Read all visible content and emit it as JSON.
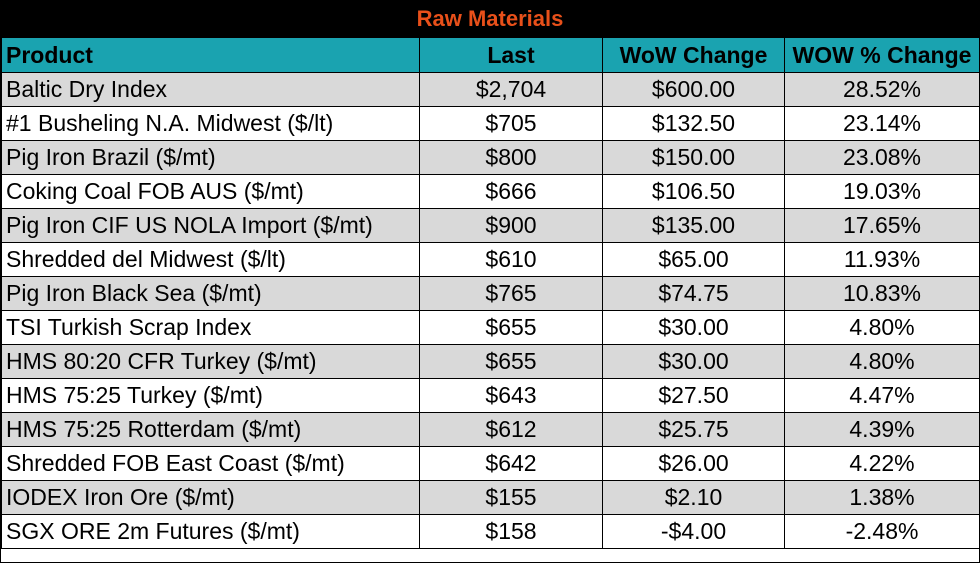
{
  "title": "Raw Materials",
  "colors": {
    "title_bg": "#000000",
    "title_text": "#e8501a",
    "header_bg": "#1aa3b0",
    "row_shaded": "#d9d9d9",
    "row_plain": "#ffffff"
  },
  "headers": {
    "product": "Product",
    "last": "Last",
    "wow_change": "WoW Change",
    "wow_pct_change": "WOW % Change"
  },
  "rows": [
    {
      "product": "Baltic Dry Index",
      "last": "$2,704",
      "wow": "$600.00",
      "pct": "28.52%"
    },
    {
      "product": "#1 Busheling N.A. Midwest ($/lt)",
      "last": "$705",
      "wow": "$132.50",
      "pct": "23.14%"
    },
    {
      "product": "Pig Iron Brazil ($/mt)",
      "last": "$800",
      "wow": "$150.00",
      "pct": "23.08%"
    },
    {
      "product": "Coking Coal FOB AUS ($/mt)",
      "last": "$666",
      "wow": "$106.50",
      "pct": "19.03%"
    },
    {
      "product": "Pig Iron CIF US NOLA Import ($/mt)",
      "last": "$900",
      "wow": "$135.00",
      "pct": "17.65%"
    },
    {
      "product": "Shredded del  Midwest ($/lt)",
      "last": "$610",
      "wow": "$65.00",
      "pct": "11.93%"
    },
    {
      "product": "Pig Iron Black Sea ($/mt)",
      "last": "$765",
      "wow": "$74.75",
      "pct": "10.83%"
    },
    {
      "product": "TSI Turkish Scrap Index",
      "last": "$655",
      "wow": "$30.00",
      "pct": "4.80%"
    },
    {
      "product": "HMS 80:20 CFR Turkey ($/mt)",
      "last": "$655",
      "wow": "$30.00",
      "pct": "4.80%"
    },
    {
      "product": "HMS 75:25 Turkey ($/mt)",
      "last": "$643",
      "wow": "$27.50",
      "pct": "4.47%"
    },
    {
      "product": "HMS 75:25 Rotterdam ($/mt)",
      "last": "$612",
      "wow": "$25.75",
      "pct": "4.39%"
    },
    {
      "product": "Shredded FOB East Coast ($/mt)",
      "last": "$642",
      "wow": "$26.00",
      "pct": "4.22%"
    },
    {
      "product": "IODEX  Iron Ore ($/mt)",
      "last": "$155",
      "wow": "$2.10",
      "pct": "1.38%"
    },
    {
      "product": "SGX ORE 2m Futures ($/mt)",
      "last": "$158",
      "wow": "-$4.00",
      "pct": "-2.48%"
    }
  ]
}
